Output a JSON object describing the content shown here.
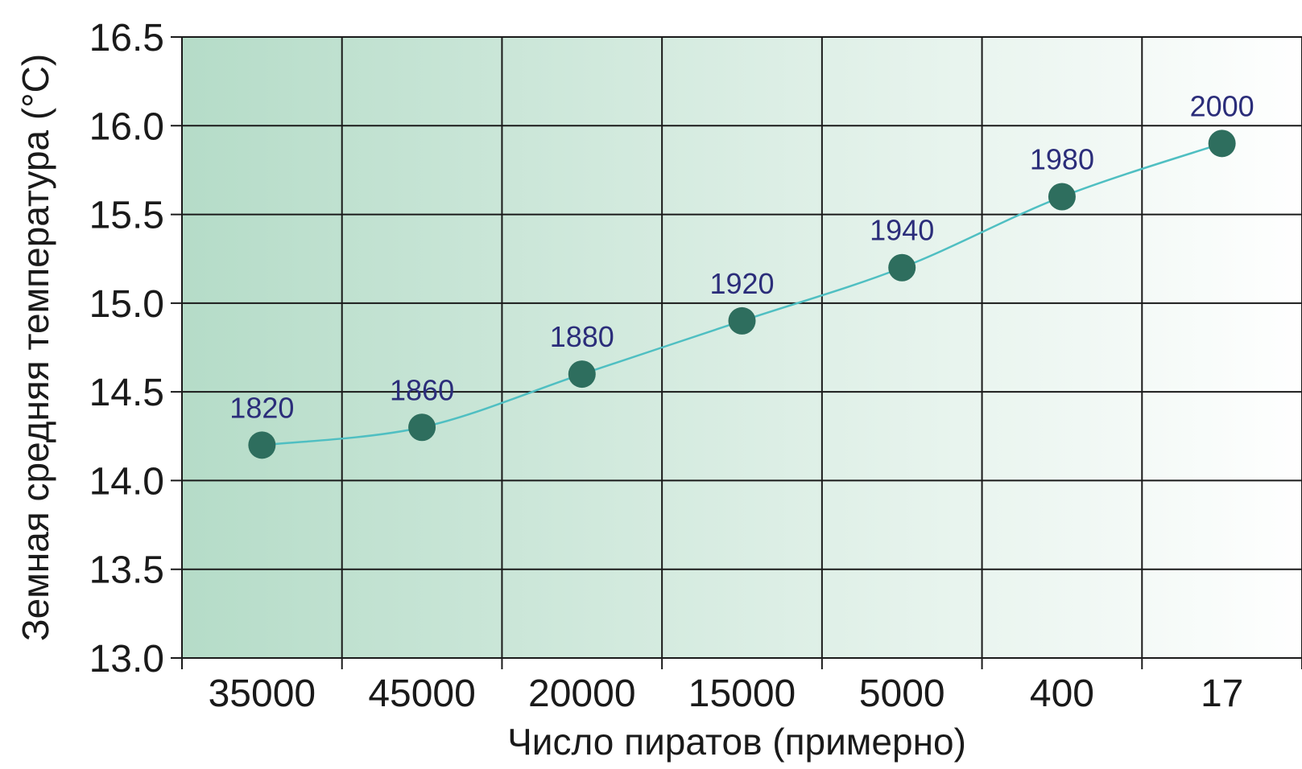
{
  "chart_data": {
    "type": "line",
    "xlabel": "Число пиратов (примерно)",
    "ylabel": "Земная средняя температура (°C)",
    "categories": [
      "35000",
      "45000",
      "20000",
      "15000",
      "5000",
      "400",
      "17"
    ],
    "ylim": [
      13.0,
      16.5
    ],
    "yticks": [
      "13.0",
      "13.5",
      "14.0",
      "14.5",
      "15.0",
      "15.5",
      "16.0",
      "16.5"
    ],
    "series": [
      {
        "values": [
          14.2,
          14.3,
          14.6,
          14.9,
          15.2,
          15.6,
          15.9
        ],
        "point_labels": [
          "1820",
          "1860",
          "1880",
          "1920",
          "1940",
          "1980",
          "2000"
        ]
      }
    ],
    "grid": true,
    "colors": {
      "line": "#4fbfc2",
      "marker": "#2e6e5e",
      "point_label": "#2b2d7a",
      "bg_left": "#b5dcc8",
      "bg_right": "#ffffff",
      "grid": "#1a1a1a"
    }
  }
}
